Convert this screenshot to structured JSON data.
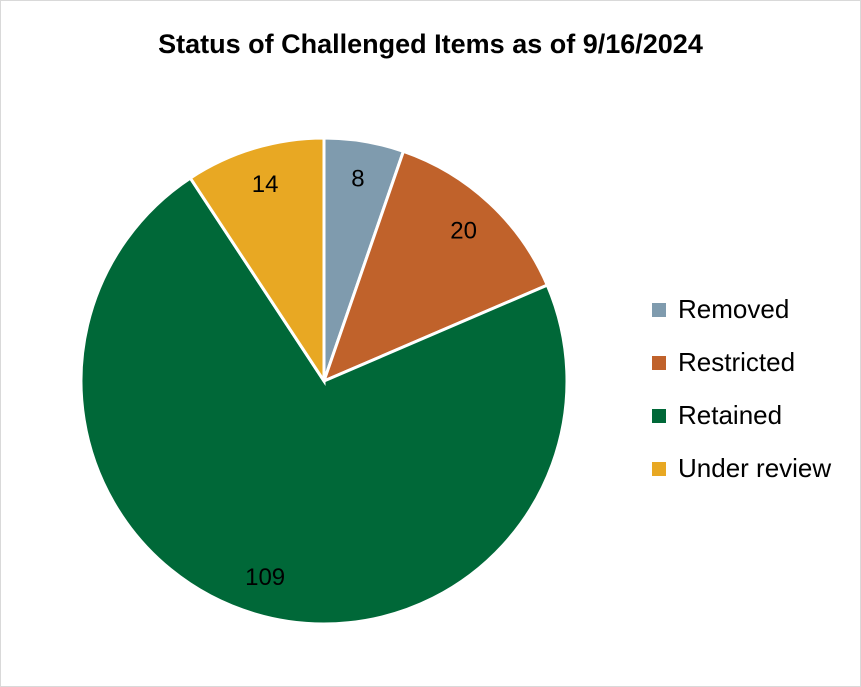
{
  "chart_data": {
    "type": "pie",
    "title": "Status of Challenged Items as of 9/16/2024",
    "categories": [
      "Removed",
      "Restricted",
      "Retained",
      "Under review"
    ],
    "values": [
      8,
      20,
      109,
      14
    ],
    "colors": [
      "#7f9bae",
      "#c0622b",
      "#006838",
      "#e8a823"
    ],
    "start_angle_deg": 0,
    "direction": "clockwise",
    "data_labels": [
      "8",
      "20",
      "109",
      "14"
    ],
    "legend_placement": "right"
  }
}
